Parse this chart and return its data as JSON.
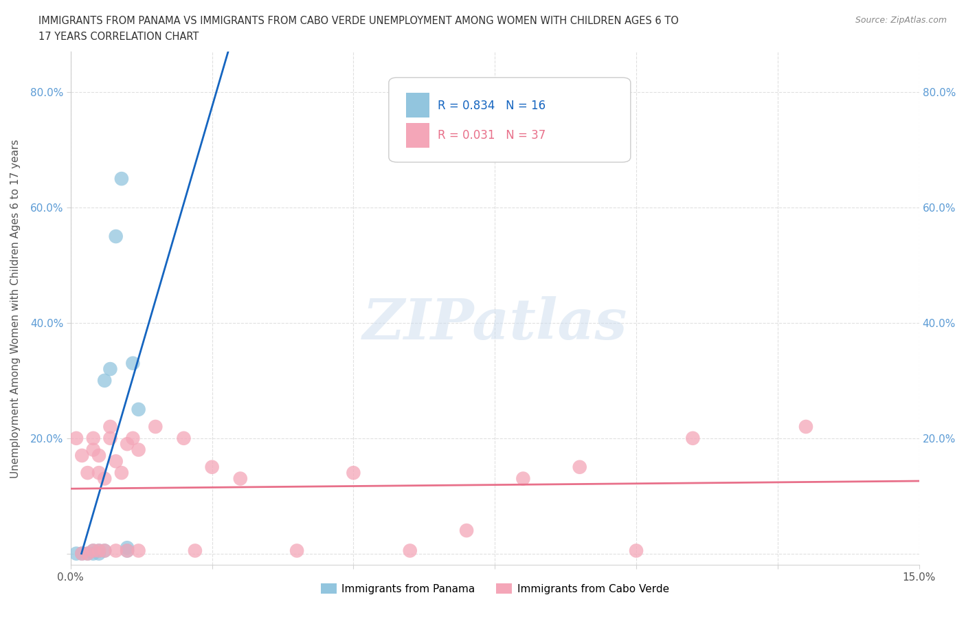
{
  "title_line1": "IMMIGRANTS FROM PANAMA VS IMMIGRANTS FROM CABO VERDE UNEMPLOYMENT AMONG WOMEN WITH CHILDREN AGES 6 TO",
  "title_line2": "17 YEARS CORRELATION CHART",
  "source": "Source: ZipAtlas.com",
  "ylabel": "Unemployment Among Women with Children Ages 6 to 17 years",
  "xlim": [
    0.0,
    0.15
  ],
  "ylim": [
    -0.02,
    0.87
  ],
  "legend1_label": "Immigrants from Panama",
  "legend2_label": "Immigrants from Cabo Verde",
  "R_panama": 0.834,
  "N_panama": 16,
  "R_caboverde": 0.031,
  "N_caboverde": 37,
  "color_panama": "#92C5DE",
  "color_caboverde": "#F4A6B8",
  "line_color_panama": "#1565C0",
  "line_color_caboverde": "#E8708A",
  "watermark_text": "ZIPatlas",
  "background_color": "#FFFFFF",
  "panama_x": [
    0.001,
    0.002,
    0.003,
    0.004,
    0.004,
    0.005,
    0.005,
    0.006,
    0.006,
    0.007,
    0.008,
    0.009,
    0.01,
    0.01,
    0.011,
    0.012
  ],
  "panama_y": [
    0.0,
    0.0,
    0.0,
    0.0,
    0.005,
    0.0,
    0.005,
    0.005,
    0.3,
    0.32,
    0.55,
    0.65,
    0.005,
    0.01,
    0.33,
    0.25
  ],
  "caboverde_x": [
    0.001,
    0.002,
    0.002,
    0.003,
    0.003,
    0.004,
    0.004,
    0.004,
    0.005,
    0.005,
    0.005,
    0.006,
    0.006,
    0.007,
    0.007,
    0.008,
    0.008,
    0.009,
    0.01,
    0.01,
    0.011,
    0.012,
    0.012,
    0.015,
    0.02,
    0.022,
    0.025,
    0.03,
    0.04,
    0.05,
    0.06,
    0.07,
    0.08,
    0.09,
    0.1,
    0.11,
    0.13
  ],
  "caboverde_y": [
    0.2,
    0.0,
    0.17,
    0.0,
    0.14,
    0.18,
    0.2,
    0.005,
    0.14,
    0.17,
    0.005,
    0.13,
    0.005,
    0.2,
    0.22,
    0.16,
    0.005,
    0.14,
    0.005,
    0.19,
    0.2,
    0.18,
    0.005,
    0.22,
    0.2,
    0.005,
    0.15,
    0.13,
    0.005,
    0.14,
    0.005,
    0.04,
    0.13,
    0.15,
    0.005,
    0.2,
    0.22
  ],
  "y_ticks": [
    0.0,
    0.2,
    0.4,
    0.6,
    0.8
  ],
  "y_tick_labels": [
    "",
    "20.0%",
    "40.0%",
    "60.0%",
    "80.0%"
  ],
  "x_tick_labels_positions": [
    0.0,
    0.15
  ],
  "x_tick_labels": [
    "0.0%",
    "15.0%"
  ]
}
